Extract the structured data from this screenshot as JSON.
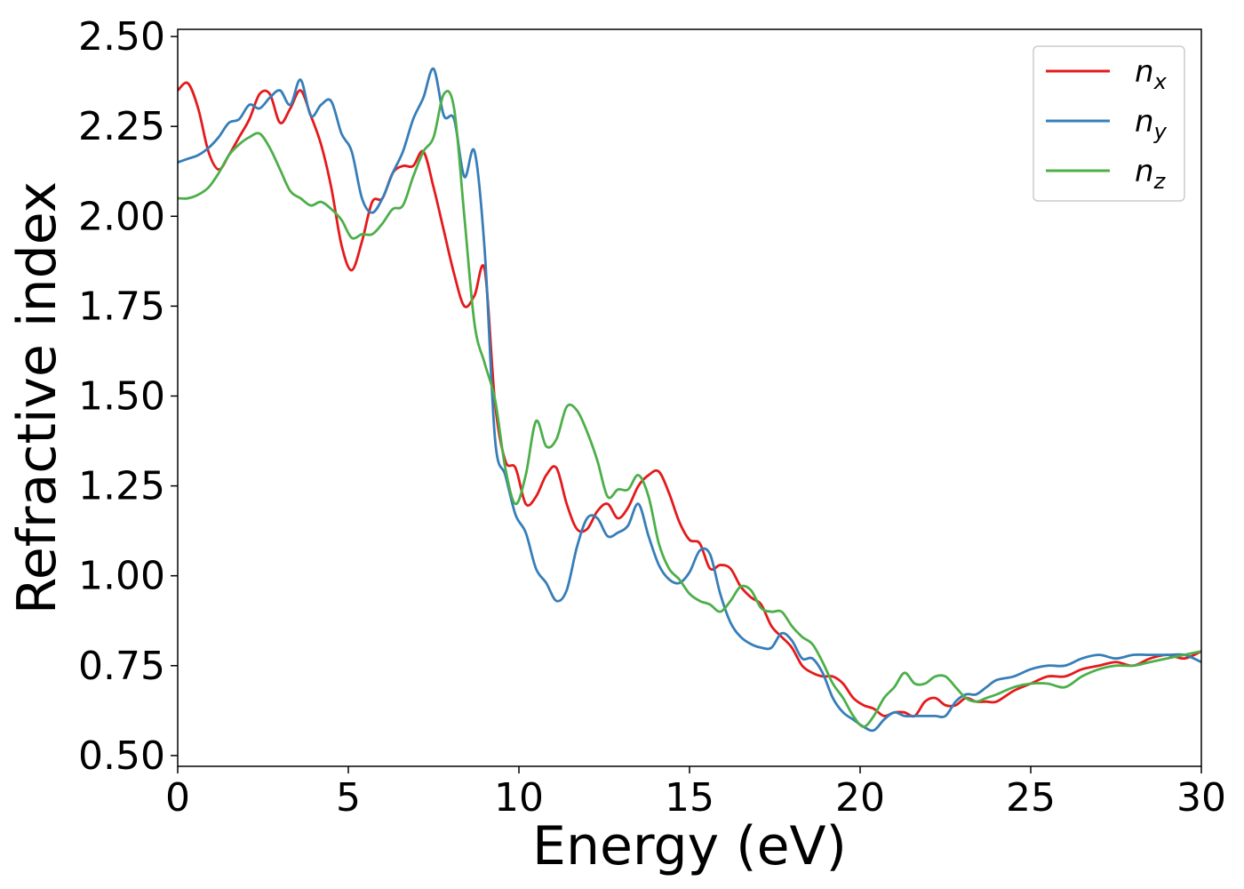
{
  "chart_data": {
    "type": "line",
    "title": "",
    "xlabel": "Energy (eV)",
    "ylabel": "Refractive index",
    "xlim": [
      0,
      30
    ],
    "ylim": [
      0.47,
      2.52
    ],
    "xticks": [
      0,
      5,
      10,
      15,
      20,
      25,
      30
    ],
    "xtick_labels": [
      "0",
      "5",
      "10",
      "15",
      "20",
      "25",
      "30"
    ],
    "yticks": [
      0.5,
      0.75,
      1.0,
      1.25,
      1.5,
      1.75,
      2.0,
      2.25,
      2.5
    ],
    "ytick_labels": [
      "0.50",
      "0.75",
      "1.00",
      "1.25",
      "1.50",
      "1.75",
      "2.00",
      "2.25",
      "2.50"
    ],
    "grid": false,
    "legend_position": "top-right",
    "series": [
      {
        "name": "n_x",
        "label_base": "n",
        "label_sub": "x",
        "color": "#e41a1c",
        "x": [
          0,
          0.3,
          0.6,
          0.9,
          1.2,
          1.5,
          1.8,
          2.1,
          2.4,
          2.7,
          3.0,
          3.3,
          3.6,
          3.9,
          4.2,
          4.5,
          4.8,
          5.1,
          5.4,
          5.7,
          6.0,
          6.3,
          6.6,
          6.9,
          7.2,
          7.5,
          7.8,
          8.1,
          8.4,
          8.7,
          9.0,
          9.3,
          9.6,
          9.9,
          10.2,
          10.5,
          10.8,
          11.1,
          11.4,
          11.7,
          12.0,
          12.3,
          12.6,
          12.9,
          13.2,
          13.5,
          13.8,
          14.1,
          14.4,
          14.7,
          15.0,
          15.3,
          15.6,
          15.9,
          16.2,
          16.5,
          16.8,
          17.1,
          17.4,
          17.7,
          18.0,
          18.3,
          18.6,
          18.9,
          19.2,
          19.5,
          19.8,
          20.1,
          20.4,
          20.7,
          21.0,
          21.3,
          21.6,
          21.9,
          22.2,
          22.5,
          22.8,
          23.1,
          23.4,
          23.7,
          24.0,
          24.5,
          25.0,
          25.5,
          26.0,
          26.5,
          27.0,
          27.5,
          28.0,
          28.5,
          29.0,
          29.5,
          30.0
        ],
        "y": [
          2.35,
          2.37,
          2.3,
          2.18,
          2.13,
          2.17,
          2.22,
          2.27,
          2.34,
          2.34,
          2.26,
          2.3,
          2.35,
          2.28,
          2.2,
          2.08,
          1.92,
          1.85,
          1.93,
          2.04,
          2.05,
          2.12,
          2.14,
          2.14,
          2.18,
          2.08,
          1.96,
          1.84,
          1.75,
          1.78,
          1.85,
          1.48,
          1.32,
          1.3,
          1.2,
          1.22,
          1.28,
          1.3,
          1.2,
          1.13,
          1.13,
          1.18,
          1.2,
          1.16,
          1.19,
          1.25,
          1.28,
          1.29,
          1.23,
          1.15,
          1.1,
          1.09,
          1.02,
          1.03,
          1.02,
          0.97,
          0.94,
          0.92,
          0.86,
          0.83,
          0.8,
          0.75,
          0.73,
          0.72,
          0.72,
          0.7,
          0.66,
          0.64,
          0.63,
          0.61,
          0.62,
          0.62,
          0.61,
          0.65,
          0.66,
          0.64,
          0.64,
          0.66,
          0.65,
          0.65,
          0.65,
          0.68,
          0.7,
          0.72,
          0.72,
          0.74,
          0.75,
          0.76,
          0.75,
          0.77,
          0.78,
          0.77,
          0.79
        ]
      },
      {
        "name": "n_y",
        "label_base": "n",
        "label_sub": "y",
        "color": "#377eb8",
        "x": [
          0,
          0.3,
          0.6,
          0.9,
          1.2,
          1.5,
          1.8,
          2.1,
          2.4,
          2.7,
          3.0,
          3.3,
          3.6,
          3.9,
          4.2,
          4.5,
          4.8,
          5.1,
          5.4,
          5.7,
          6.0,
          6.3,
          6.6,
          6.9,
          7.2,
          7.5,
          7.8,
          8.1,
          8.4,
          8.7,
          9.0,
          9.3,
          9.6,
          9.9,
          10.2,
          10.5,
          10.8,
          11.1,
          11.4,
          11.7,
          12.0,
          12.3,
          12.6,
          12.9,
          13.2,
          13.5,
          13.8,
          14.1,
          14.4,
          14.7,
          15.0,
          15.3,
          15.6,
          15.9,
          16.2,
          16.5,
          16.8,
          17.1,
          17.4,
          17.7,
          18.0,
          18.3,
          18.6,
          18.9,
          19.2,
          19.5,
          19.8,
          20.1,
          20.4,
          20.7,
          21.0,
          21.3,
          21.6,
          21.9,
          22.2,
          22.5,
          22.8,
          23.1,
          23.4,
          23.7,
          24.0,
          24.5,
          25.0,
          25.5,
          26.0,
          26.5,
          27.0,
          27.5,
          28.0,
          28.5,
          29.0,
          29.5,
          30.0
        ],
        "y": [
          2.15,
          2.16,
          2.17,
          2.19,
          2.22,
          2.26,
          2.27,
          2.31,
          2.3,
          2.33,
          2.35,
          2.31,
          2.38,
          2.28,
          2.31,
          2.32,
          2.23,
          2.18,
          2.05,
          2.01,
          2.05,
          2.12,
          2.18,
          2.27,
          2.33,
          2.41,
          2.28,
          2.27,
          2.11,
          2.18,
          1.9,
          1.38,
          1.28,
          1.17,
          1.12,
          1.02,
          0.98,
          0.93,
          0.96,
          1.08,
          1.16,
          1.16,
          1.11,
          1.12,
          1.14,
          1.2,
          1.11,
          1.03,
          0.99,
          0.98,
          1.01,
          1.07,
          1.06,
          0.95,
          0.87,
          0.83,
          0.81,
          0.8,
          0.8,
          0.84,
          0.82,
          0.77,
          0.77,
          0.73,
          0.66,
          0.62,
          0.6,
          0.58,
          0.57,
          0.6,
          0.62,
          0.61,
          0.61,
          0.61,
          0.61,
          0.61,
          0.65,
          0.67,
          0.67,
          0.69,
          0.71,
          0.72,
          0.74,
          0.75,
          0.75,
          0.77,
          0.78,
          0.77,
          0.78,
          0.78,
          0.78,
          0.78,
          0.76
        ]
      },
      {
        "name": "n_z",
        "label_base": "n",
        "label_sub": "z",
        "color": "#4daf4a",
        "x": [
          0,
          0.3,
          0.6,
          0.9,
          1.2,
          1.5,
          1.8,
          2.1,
          2.4,
          2.7,
          3.0,
          3.3,
          3.6,
          3.9,
          4.2,
          4.5,
          4.8,
          5.1,
          5.4,
          5.7,
          6.0,
          6.3,
          6.6,
          6.9,
          7.2,
          7.5,
          7.8,
          8.1,
          8.4,
          8.7,
          9.0,
          9.3,
          9.6,
          9.9,
          10.2,
          10.5,
          10.8,
          11.1,
          11.4,
          11.7,
          12.0,
          12.3,
          12.6,
          12.9,
          13.2,
          13.5,
          13.8,
          14.1,
          14.4,
          14.7,
          15.0,
          15.3,
          15.6,
          15.9,
          16.2,
          16.5,
          16.8,
          17.1,
          17.4,
          17.7,
          18.0,
          18.3,
          18.6,
          18.9,
          19.2,
          19.5,
          19.8,
          20.1,
          20.4,
          20.7,
          21.0,
          21.3,
          21.6,
          21.9,
          22.2,
          22.5,
          22.8,
          23.1,
          23.4,
          23.7,
          24.0,
          24.5,
          25.0,
          25.5,
          26.0,
          26.5,
          27.0,
          27.5,
          28.0,
          28.5,
          29.0,
          29.5,
          30.0
        ],
        "y": [
          2.05,
          2.05,
          2.06,
          2.08,
          2.12,
          2.17,
          2.2,
          2.22,
          2.23,
          2.19,
          2.13,
          2.07,
          2.05,
          2.03,
          2.04,
          2.02,
          1.99,
          1.94,
          1.95,
          1.95,
          1.98,
          2.02,
          2.03,
          2.11,
          2.18,
          2.22,
          2.34,
          2.3,
          2.0,
          1.7,
          1.59,
          1.49,
          1.3,
          1.2,
          1.28,
          1.43,
          1.36,
          1.38,
          1.47,
          1.46,
          1.4,
          1.32,
          1.22,
          1.24,
          1.24,
          1.28,
          1.22,
          1.09,
          1.02,
          0.99,
          0.95,
          0.93,
          0.92,
          0.9,
          0.93,
          0.97,
          0.96,
          0.91,
          0.9,
          0.9,
          0.86,
          0.83,
          0.81,
          0.76,
          0.7,
          0.66,
          0.61,
          0.58,
          0.61,
          0.66,
          0.69,
          0.73,
          0.7,
          0.7,
          0.72,
          0.72,
          0.69,
          0.66,
          0.65,
          0.66,
          0.67,
          0.69,
          0.7,
          0.7,
          0.69,
          0.72,
          0.74,
          0.75,
          0.75,
          0.76,
          0.77,
          0.78,
          0.79
        ]
      }
    ]
  }
}
